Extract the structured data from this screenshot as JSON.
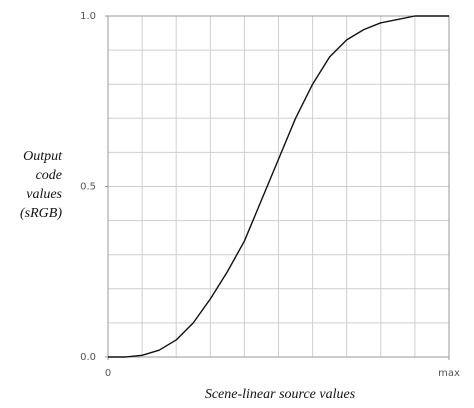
{
  "chart_data": {
    "type": "line",
    "xlabel": "Scene-linear source values",
    "ylabel": [
      "Output",
      "code",
      "values",
      "(sRGB)"
    ],
    "x": [
      0,
      0.05,
      0.1,
      0.15,
      0.2,
      0.25,
      0.3,
      0.35,
      0.4,
      0.45,
      0.5,
      0.55,
      0.6,
      0.65,
      0.7,
      0.75,
      0.8,
      0.85,
      0.9,
      0.95,
      1
    ],
    "series": [
      {
        "color": "#111111",
        "values": [
          0,
          0,
          0.005,
          0.02,
          0.05,
          0.1,
          0.17,
          0.25,
          0.34,
          0.46,
          0.58,
          0.7,
          0.8,
          0.88,
          0.93,
          0.96,
          0.98,
          0.99,
          1,
          1,
          1
        ]
      }
    ],
    "xlim": [
      0,
      1
    ],
    "ylim": [
      0,
      1
    ],
    "xticks": [
      0,
      {
        "value": 1,
        "label": "max"
      }
    ],
    "yticks": [
      {
        "value": 0,
        "label": "0.0"
      },
      0.5,
      {
        "value": 1,
        "label": "1.0"
      }
    ],
    "xgrid": [
      0.1,
      0.2,
      0.3,
      0.4,
      0.5,
      0.6,
      0.7,
      0.8,
      0.9
    ],
    "ygrid": [
      0.1,
      0.2,
      0.3,
      0.4,
      0.5,
      0.6,
      0.7,
      0.8,
      0.9
    ]
  }
}
